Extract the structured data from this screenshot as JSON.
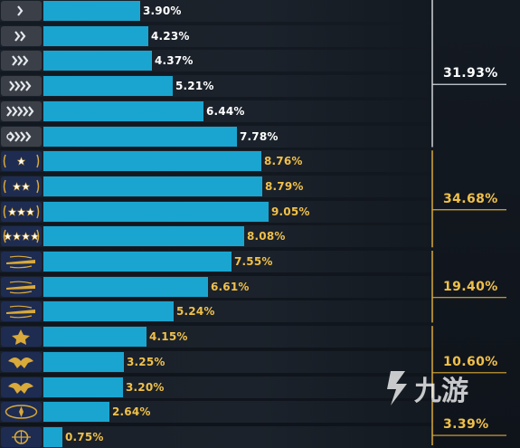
{
  "colors": {
    "bar": "#1aa5d0",
    "silver_text": "#ffffff",
    "gold_text": "#f0c04a",
    "silver_line": "#cfd4da",
    "gold_line": "#d9a93a",
    "icon_silver_bg": "#3b4048",
    "icon_gold_bg": "#1e2c52"
  },
  "chart_data": {
    "type": "bar",
    "orientation": "horizontal",
    "unit": "%",
    "xlim": [
      0,
      10.4
    ],
    "categories": [
      "rank-1",
      "rank-2",
      "rank-3",
      "rank-4",
      "rank-5",
      "rank-6",
      "rank-7",
      "rank-8",
      "rank-9",
      "rank-10",
      "rank-11",
      "rank-12",
      "rank-13",
      "rank-14",
      "rank-15",
      "rank-16",
      "rank-17",
      "rank-18"
    ],
    "values": [
      3.9,
      4.23,
      4.37,
      5.21,
      6.44,
      7.78,
      8.76,
      8.79,
      9.05,
      8.08,
      7.55,
      6.61,
      5.24,
      4.15,
      3.25,
      3.2,
      2.64,
      0.75
    ],
    "labels": [
      "3.90%",
      "4.23%",
      "4.37%",
      "5.21%",
      "6.44%",
      "7.78%",
      "8.76%",
      "8.79%",
      "9.05%",
      "8.08%",
      "7.55%",
      "6.61%",
      "5.24%",
      "4.15%",
      "3.25%",
      "3.20%",
      "2.64%",
      "0.75%"
    ],
    "rank_icons": [
      "chevron-1-icon",
      "chevron-2-icon",
      "chevron-3-icon",
      "chevron-4-icon",
      "chevron-5-icon",
      "chevron-elite-icon",
      "gold-nova-1-icon",
      "gold-nova-2-icon",
      "gold-nova-3-icon",
      "gold-nova-master-icon",
      "master-guardian-1-icon",
      "master-guardian-2-icon",
      "master-guardian-elite-icon",
      "distinguished-master-guardian-icon",
      "legendary-eagle-icon",
      "legendary-eagle-master-icon",
      "supreme-master-icon",
      "global-elite-icon"
    ],
    "groups": [
      {
        "label": "31.93%",
        "rows": [
          0,
          5
        ],
        "style": "silver"
      },
      {
        "label": "34.68%",
        "rows": [
          6,
          9
        ],
        "style": "gold"
      },
      {
        "label": "19.40%",
        "rows": [
          10,
          12
        ],
        "style": "gold"
      },
      {
        "label": "10.60%",
        "rows": [
          13,
          15
        ],
        "style": "gold"
      },
      {
        "label": "3.39%",
        "rows": [
          16,
          17
        ],
        "style": "gold"
      }
    ]
  },
  "watermark": {
    "text": "九游"
  }
}
